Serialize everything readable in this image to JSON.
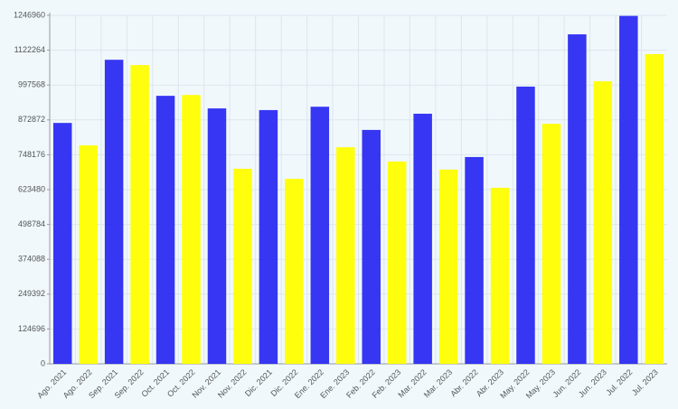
{
  "chart_data": {
    "type": "bar",
    "categories": [
      "Ago. 2021",
      "Ago. 2022",
      "Sep. 2021",
      "Sep. 2022",
      "Oct. 2021",
      "Oct. 2022",
      "Nov. 2021",
      "Nov. 2022",
      "Dic. 2021",
      "Dic. 2022",
      "Ene. 2022",
      "Ene. 2023",
      "Feb. 2022",
      "Feb. 2023",
      "Mar. 2022",
      "Mar. 2023",
      "Abr. 2022",
      "Abr. 2023",
      "May. 2022",
      "May. 2023",
      "Jun. 2022",
      "Jun. 2023",
      "Jul. 2022",
      "Jul. 2023"
    ],
    "values": [
      862000,
      782000,
      1088000,
      1069000,
      959000,
      962000,
      914000,
      698000,
      908000,
      662000,
      920000,
      775000,
      837000,
      724000,
      895000,
      695000,
      740000,
      630000,
      992000,
      859000,
      1179000,
      1011000,
      1245000,
      1108000
    ],
    "colors": [
      "#2b2bf2",
      "#ffff00",
      "#2b2bf2",
      "#ffff00",
      "#2b2bf2",
      "#ffff00",
      "#2b2bf2",
      "#ffff00",
      "#2b2bf2",
      "#ffff00",
      "#2b2bf2",
      "#ffff00",
      "#2b2bf2",
      "#ffff00",
      "#2b2bf2",
      "#ffff00",
      "#2b2bf2",
      "#ffff00",
      "#2b2bf2",
      "#ffff00",
      "#2b2bf2",
      "#ffff00",
      "#2b2bf2",
      "#ffff00"
    ],
    "ylim": [
      0,
      1246960
    ],
    "yticks": [
      0,
      124696,
      249392,
      374088,
      498784,
      623480,
      748176,
      872872,
      997568,
      1122264,
      1246960
    ],
    "grid": true
  }
}
